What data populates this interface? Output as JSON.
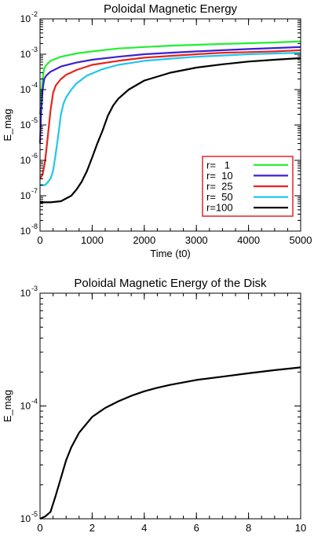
{
  "chart_data": [
    {
      "type": "line",
      "title": "Poloidal Magnetic Energy",
      "xlabel": "Time (t0)",
      "ylabel": "E_mag",
      "xlim": [
        0,
        5000
      ],
      "ylim": [
        1e-08,
        0.01
      ],
      "yscale": "log",
      "x_ticks": [
        0,
        1000,
        2000,
        3000,
        4000,
        5000
      ],
      "x_tick_labels": [
        "0",
        "1000",
        "2000",
        "3000",
        "4000",
        "5000"
      ],
      "y_tick_exponents": [
        -8,
        -7,
        -6,
        -5,
        -4,
        -3,
        -2
      ],
      "y_tick_base": "10",
      "legend_position": "lower-right",
      "legend_border_color": "#e0252b",
      "series": [
        {
          "name": "r=   1",
          "color": "#22ee33",
          "x": [
            0,
            20,
            50,
            80,
            120,
            200,
            400,
            700,
            1000,
            1500,
            2000,
            2500,
            3000,
            3500,
            4000,
            4500,
            5000
          ],
          "y": [
            2e-05,
            5e-05,
            0.0002,
            0.0004,
            0.0005,
            0.00065,
            0.00085,
            0.00105,
            0.0012,
            0.00145,
            0.0016,
            0.00175,
            0.00185,
            0.00195,
            0.00205,
            0.00215,
            0.0023
          ]
        },
        {
          "name": "r=  10",
          "color": "#3a22d0",
          "x": [
            0,
            20,
            50,
            80,
            120,
            200,
            400,
            700,
            1000,
            1500,
            2000,
            2500,
            3000,
            3500,
            4000,
            4500,
            5000
          ],
          "y": [
            3e-06,
            2e-05,
            0.0001,
            0.0002,
            0.00025,
            0.00032,
            0.00045,
            0.00058,
            0.0007,
            0.00085,
            0.001,
            0.0011,
            0.0012,
            0.0013,
            0.0014,
            0.0015,
            0.0016
          ]
        },
        {
          "name": "r=  25",
          "color": "#e8241c",
          "x": [
            0,
            50,
            100,
            150,
            200,
            250,
            300,
            400,
            500,
            700,
            1000,
            1500,
            2000,
            2500,
            3000,
            3500,
            4000,
            4500,
            5000
          ],
          "y": [
            3e-07,
            4e-07,
            1e-06,
            5e-06,
            2.5e-05,
            8e-05,
            0.00013,
            0.0002,
            0.00026,
            0.00036,
            0.0005,
            0.00065,
            0.0008,
            0.0009,
            0.001,
            0.0011,
            0.00115,
            0.0012,
            0.0013
          ]
        },
        {
          "name": "r=  50",
          "color": "#21c6ea",
          "x": [
            0,
            100,
            200,
            250,
            300,
            350,
            400,
            450,
            500,
            600,
            700,
            900,
            1200,
            1500,
            2000,
            2500,
            3000,
            3500,
            4000,
            4500,
            5000
          ],
          "y": [
            2e-07,
            2e-07,
            3e-07,
            5e-07,
            1.5e-06,
            5e-06,
            2e-05,
            4e-05,
            6e-05,
            0.0001,
            0.00015,
            0.00025,
            0.00038,
            0.0005,
            0.00065,
            0.00075,
            0.00085,
            0.00092,
            0.001,
            0.00105,
            0.0011
          ]
        },
        {
          "name": "r=100",
          "color": "#000000",
          "x": [
            0,
            200,
            400,
            600,
            700,
            800,
            900,
            1000,
            1100,
            1200,
            1300,
            1400,
            1500,
            1700,
            2000,
            2500,
            3000,
            3500,
            4000,
            4500,
            5000
          ],
          "y": [
            6.5e-08,
            6.5e-08,
            7e-08,
            1e-07,
            1.5e-07,
            2.5e-07,
            5e-07,
            1.2e-06,
            3e-06,
            7e-06,
            1.8e-05,
            3.5e-05,
            5.5e-05,
            0.0001,
            0.00018,
            0.0003,
            0.00042,
            0.00052,
            0.00062,
            0.0007,
            0.00078
          ]
        }
      ]
    },
    {
      "type": "line",
      "title": "Poloidal Magnetic Energy of the Disk",
      "xlabel": "Time (t0)",
      "ylabel": "E_mag",
      "xlim": [
        0,
        10
      ],
      "ylim": [
        1e-05,
        0.001
      ],
      "yscale": "log",
      "x_ticks": [
        0,
        2,
        4,
        6,
        8,
        10
      ],
      "x_tick_labels": [
        "0",
        "2",
        "4",
        "6",
        "8",
        "10"
      ],
      "y_tick_exponents": [
        -5,
        -4,
        -3
      ],
      "y_tick_base": "10",
      "series": [
        {
          "color": "#000000",
          "x": [
            0,
            0.2,
            0.4,
            0.6,
            0.8,
            1.0,
            1.2,
            1.5,
            2.0,
            2.5,
            3.0,
            3.5,
            4.0,
            4.5,
            5.0,
            6.0,
            7.0,
            8.0,
            9.0,
            10.0
          ],
          "y": [
            1e-05,
            1.05e-05,
            1.15e-05,
            1.6e-05,
            2.3e-05,
            3.3e-05,
            4.3e-05,
            5.8e-05,
            8e-05,
            9.6e-05,
            0.00011,
            0.000123,
            0.000135,
            0.000145,
            0.000154,
            0.00017,
            0.000182,
            0.000195,
            0.000208,
            0.00022
          ]
        }
      ]
    }
  ]
}
